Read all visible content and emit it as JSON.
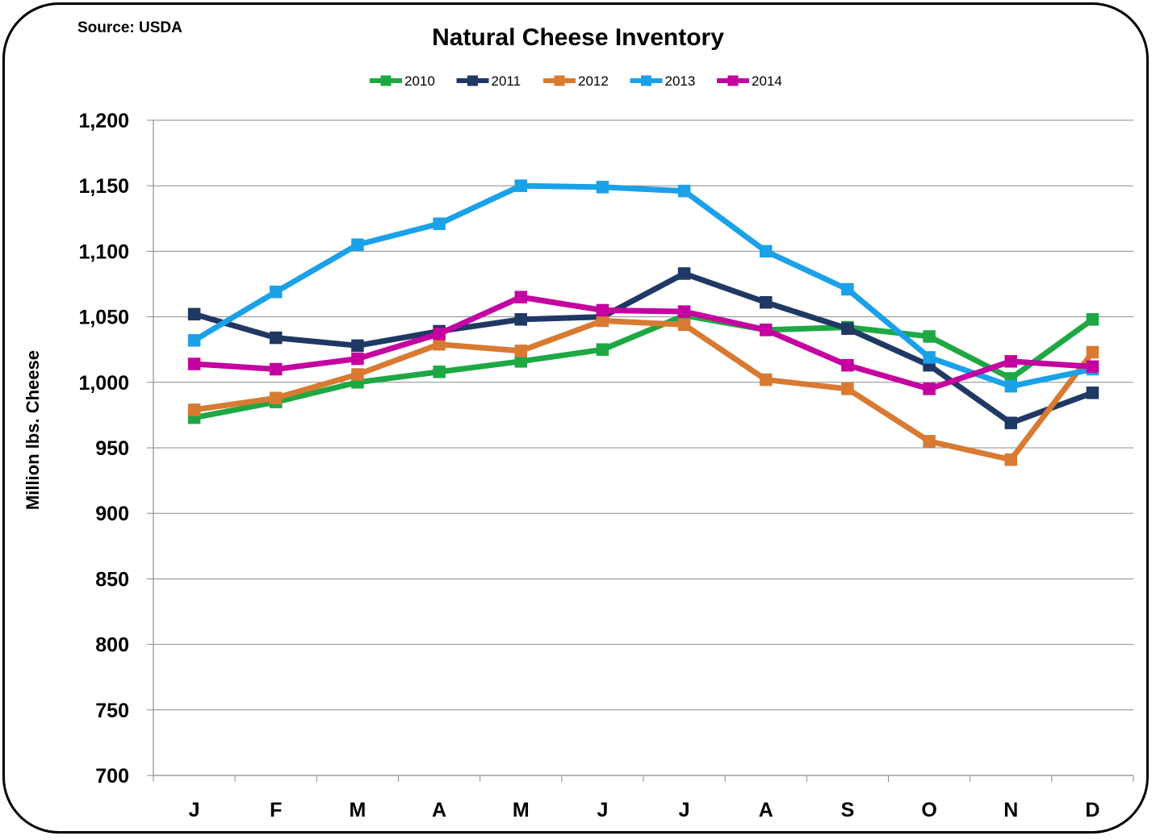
{
  "source_note": "Source: USDA",
  "chart_data": {
    "type": "line",
    "title": "Natural Cheese Inventory",
    "xlabel": "",
    "ylabel": "Million lbs. Cheese",
    "ylim": [
      700,
      1200
    ],
    "ytick_step": 50,
    "grid": "horizontal",
    "legend_position": "top",
    "categories": [
      "J",
      "F",
      "M",
      "A",
      "M",
      "J",
      "J",
      "A",
      "S",
      "O",
      "N",
      "D"
    ],
    "series": [
      {
        "name": "2010",
        "color": "#1ea844",
        "marker": "#1ea844",
        "values": [
          973,
          985,
          1000,
          1008,
          1016,
          1025,
          1051,
          1040,
          1042,
          1035,
          1003,
          1048
        ]
      },
      {
        "name": "2011",
        "color": "#1f3864",
        "marker": "#1f3864",
        "values": [
          1052,
          1034,
          1028,
          1039,
          1048,
          1050,
          1083,
          1061,
          1041,
          1013,
          969,
          992
        ]
      },
      {
        "name": "2012",
        "color": "#d87a32",
        "marker": "#d87a32",
        "values": [
          979,
          988,
          1006,
          1029,
          1024,
          1047,
          1044,
          1002,
          995,
          955,
          941,
          1023
        ]
      },
      {
        "name": "2013",
        "color": "#1ba1e8",
        "marker": "#1ba1e8",
        "values": [
          1032,
          1069,
          1105,
          1121,
          1150,
          1149,
          1146,
          1100,
          1071,
          1019,
          997,
          1010
        ]
      },
      {
        "name": "2014",
        "color": "#c400a0",
        "marker": "#c400a0",
        "values": [
          1014,
          1010,
          1018,
          1037,
          1065,
          1055,
          1054,
          1040,
          1013,
          995,
          1016,
          1012
        ]
      }
    ]
  }
}
